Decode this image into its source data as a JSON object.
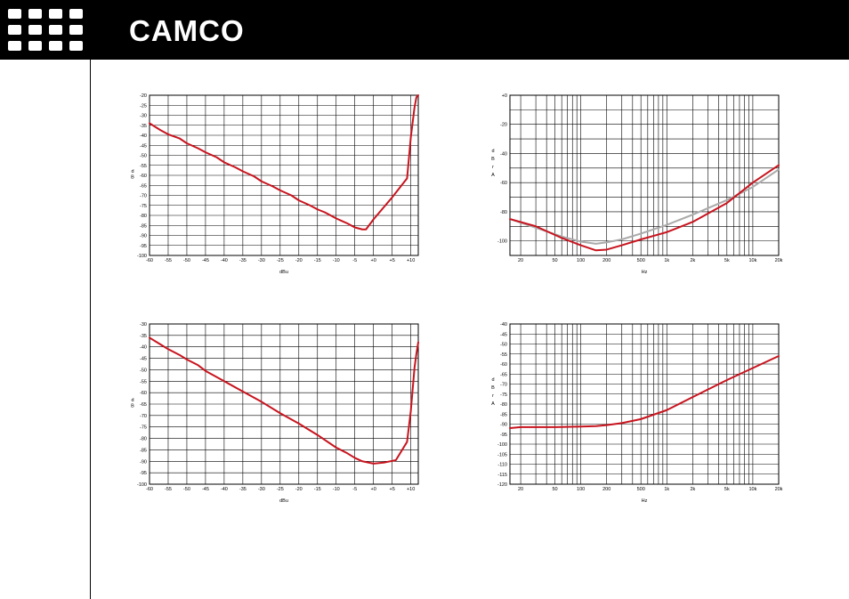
{
  "header": {
    "brand": "CAMCO",
    "logo_icon": "camco-grid-logo",
    "background": "#000000"
  },
  "colors": {
    "series_primary": "#c8141e",
    "series_secondary": "#aaaaaa",
    "grid": "#000000"
  },
  "chart_data": [
    {
      "type": "line",
      "xscale": "linear",
      "xlim": [
        -60,
        12
      ],
      "ylim": [
        -100,
        -20
      ],
      "xticks": [
        -60,
        -55,
        -50,
        -45,
        -40,
        -35,
        -30,
        -25,
        -20,
        -15,
        -10,
        -5,
        0,
        5,
        10
      ],
      "xtick_labels": [
        "-60",
        "-55",
        "-50",
        "-45",
        "-40",
        "-35",
        "-30",
        "-25",
        "-20",
        "-15",
        "-10",
        "-5",
        "+0",
        "+5",
        "+10"
      ],
      "yticks": [
        -20,
        -25,
        -30,
        -35,
        -40,
        -45,
        -50,
        -55,
        -60,
        -65,
        -70,
        -75,
        -80,
        -85,
        -90,
        -95,
        -100
      ],
      "ytick_labels": [
        "-20",
        "-25",
        "-30",
        "-35",
        "-40",
        "-45",
        "-50",
        "-55",
        "-60",
        "-65",
        "-70",
        "-75",
        "-80",
        "-85",
        "-90",
        "-95",
        "-100"
      ],
      "xlabel": "dBu",
      "ylabel": "dB",
      "grid": true,
      "series": [
        {
          "color": "#c8141e",
          "x": [
            -60,
            -57,
            -55,
            -52,
            -50,
            -47,
            -45,
            -42,
            -40,
            -37,
            -35,
            -32,
            -30,
            -27,
            -25,
            -22,
            -20,
            -17,
            -15,
            -13,
            -10,
            -7,
            -5,
            -3,
            -2,
            0,
            5,
            9,
            10,
            11,
            11.5,
            12
          ],
          "y": [
            -34,
            -37.5,
            -39.5,
            -41.5,
            -44,
            -46.5,
            -48.5,
            -51,
            -53.5,
            -56,
            -58,
            -60.5,
            -63,
            -65.5,
            -67.5,
            -70,
            -72.5,
            -75,
            -77,
            -78.5,
            -81.5,
            -84,
            -86,
            -87,
            -87,
            -82,
            -71,
            -61.5,
            -41,
            -26,
            -21,
            -20
          ]
        }
      ]
    },
    {
      "type": "line",
      "xscale": "log",
      "xlim": [
        15,
        20000
      ],
      "ylim": [
        -110,
        0
      ],
      "xticks": [
        20,
        50,
        100,
        200,
        500,
        1000,
        2000,
        5000,
        10000,
        20000
      ],
      "xtick_labels": [
        "20",
        "50",
        "100",
        "200",
        "500",
        "1k",
        "2k",
        "5k",
        "10k",
        "20k"
      ],
      "yticks": [
        0,
        -20,
        -40,
        -60,
        -80,
        -100
      ],
      "ytick_labels": [
        "+0",
        "-20",
        "-40",
        "-60",
        "-80",
        "-100"
      ],
      "xlabel": "Hz",
      "ylabel": "dBrA",
      "grid": true,
      "series": [
        {
          "color": "#aaaaaa",
          "x": [
            15,
            30,
            60,
            100,
            150,
            200,
            300,
            500,
            1000,
            2000,
            5000,
            10000,
            20000
          ],
          "y": [
            -85,
            -91,
            -97,
            -100.5,
            -102,
            -101,
            -99,
            -95,
            -89,
            -82,
            -72,
            -63,
            -51
          ]
        },
        {
          "color": "#c8141e",
          "x": [
            15,
            30,
            60,
            100,
            150,
            200,
            300,
            500,
            1000,
            2000,
            5000,
            10000,
            20000
          ],
          "y": [
            -85,
            -90,
            -98,
            -103,
            -106.5,
            -106,
            -103,
            -99,
            -94,
            -87,
            -74,
            -60,
            -48
          ]
        }
      ]
    },
    {
      "type": "line",
      "xscale": "linear",
      "xlim": [
        -60,
        12
      ],
      "ylim": [
        -100,
        -30
      ],
      "xticks": [
        -60,
        -55,
        -50,
        -45,
        -40,
        -35,
        -30,
        -25,
        -20,
        -15,
        -10,
        -5,
        0,
        5,
        10
      ],
      "xtick_labels": [
        "-60",
        "-55",
        "-50",
        "-45",
        "-40",
        "-35",
        "-30",
        "-25",
        "-20",
        "-15",
        "-10",
        "-5",
        "+0",
        "+5",
        "+10"
      ],
      "yticks": [
        -30,
        -35,
        -40,
        -45,
        -50,
        -55,
        -60,
        -65,
        -70,
        -75,
        -80,
        -85,
        -90,
        -95,
        -100
      ],
      "ytick_labels": [
        "-30",
        "-35",
        "-40",
        "-45",
        "-50",
        "-55",
        "-60",
        "-65",
        "-70",
        "-75",
        "-80",
        "-85",
        "-90",
        "-95",
        "-100"
      ],
      "xlabel": "dBu",
      "ylabel": "dB",
      "grid": true,
      "series": [
        {
          "color": "#c8141e",
          "x": [
            -60,
            -57,
            -55,
            -52,
            -50,
            -47,
            -45,
            -40,
            -35,
            -30,
            -25,
            -20,
            -15,
            -10,
            -7,
            -5,
            -3,
            0,
            3,
            6,
            9,
            10,
            11,
            11.5,
            12
          ],
          "y": [
            -36,
            -39,
            -41,
            -43.5,
            -45.5,
            -48,
            -50.5,
            -55,
            -59.5,
            -64,
            -69,
            -73.5,
            -78.5,
            -84,
            -86.5,
            -88.5,
            -90,
            -91,
            -90.5,
            -89.5,
            -81.5,
            -68,
            -49,
            -43,
            -38
          ]
        }
      ]
    },
    {
      "type": "line",
      "xscale": "log",
      "xlim": [
        15,
        20000
      ],
      "ylim": [
        -120,
        -40
      ],
      "xticks": [
        20,
        50,
        100,
        200,
        500,
        1000,
        2000,
        5000,
        10000,
        20000
      ],
      "xtick_labels": [
        "20",
        "50",
        "100",
        "200",
        "500",
        "1k",
        "2k",
        "5k",
        "10k",
        "20k"
      ],
      "yticks": [
        -40,
        -45,
        -50,
        -55,
        -60,
        -65,
        -70,
        -75,
        -80,
        -85,
        -90,
        -95,
        -100,
        -105,
        -110,
        -115,
        -120
      ],
      "ytick_labels": [
        "-40",
        "-45",
        "-50",
        "-55",
        "-60",
        "-65",
        "-70",
        "-75",
        "-80",
        "-85",
        "-90",
        "-95",
        "-100",
        "-105",
        "-110",
        "-115",
        "-120"
      ],
      "xlabel": "Hz",
      "ylabel": "dBrA",
      "grid": true,
      "series": [
        {
          "color": "#c8141e",
          "x": [
            15,
            20,
            50,
            100,
            150,
            200,
            300,
            500,
            1000,
            2000,
            5000,
            10000,
            20000
          ],
          "y": [
            -92,
            -91.5,
            -91.5,
            -91.2,
            -91,
            -90.5,
            -89.5,
            -87.5,
            -83,
            -76.5,
            -68,
            -62,
            -56
          ]
        }
      ]
    }
  ]
}
